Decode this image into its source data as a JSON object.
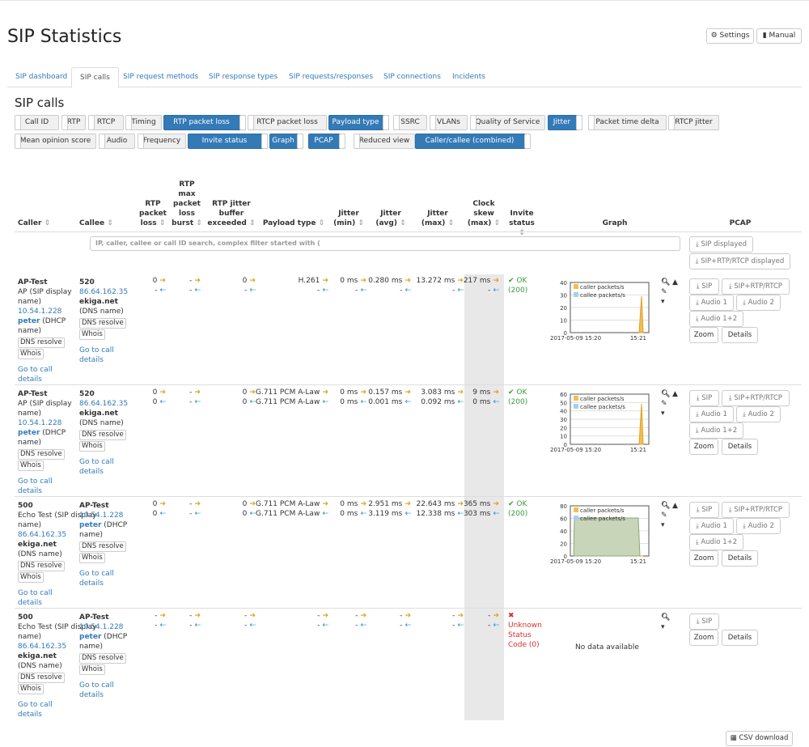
{
  "page": {
    "title": "SIP Statistics",
    "settings_label": "Settings",
    "manual_label": "Manual",
    "section_title": "SIP calls",
    "csv_label": "CSV download"
  },
  "tabs": [
    "SIP dashboard",
    "SIP calls",
    "SIP request methods",
    "SIP response types",
    "SIP requests/responses",
    "SIP connections",
    "Incidents"
  ],
  "toggles_row1": [
    "Call ID",
    "RTP",
    "RTCP",
    "Timing",
    "RTP packet loss",
    "RTCP packet loss",
    "Payload type",
    "SSRC",
    "VLANs",
    "Quality of Service",
    "Jitter",
    "Packet time delta",
    "RTCP jitter"
  ],
  "toggles_row2": [
    "Mean opinion score",
    "Audio",
    "Frequency",
    "Invite status",
    "Graph",
    "PCAP",
    "Reduced view",
    "Caller/callee (combined)"
  ],
  "headers": {
    "caller": "Caller",
    "callee": "Callee",
    "rtp_loss": "RTP packet loss",
    "rtp_burst": "RTP max packet loss burst",
    "rtp_jitter_buf": "RTP jitter buffer exceeded",
    "payload": "Payload type",
    "jmin": "Jitter (min)",
    "javg": "Jitter (avg)",
    "jmax": "Jitter (max)",
    "skew": "Clock skew (max)",
    "invite": "Invite status",
    "graph": "Graph",
    "pcap": "PCAP"
  },
  "filter_placeholder": "IP, caller, callee or call ID search, complex filter started with (",
  "pcap_displayed": {
    "sip": "SIP displayed",
    "all": "SIP+RTP/RTCP displayed"
  },
  "common": {
    "dns_resolve": "DNS resolve",
    "whois": "Whois",
    "go_to_call": "Go to call",
    "details_word": "details",
    "sip_display_name": "(SIP display",
    "name_word": "name)",
    "dhcp_name": "(DHCP",
    "dns_name": "(DNS name)",
    "no_data": "No data available",
    "zoom": "Zoom",
    "details": "Details",
    "sip": "SIP",
    "sip_rtp": "SIP+RTP/RTCP",
    "audio1": "Audio 1",
    "audio2": "Audio 2",
    "audio12": "Audio 1+2",
    "legend_caller": "caller packets/s",
    "legend_callee": "callee packets/s",
    "x_start": "2017-05-09 15:20",
    "x_end": "15:21"
  },
  "rows": [
    {
      "caller_name": "AP-Test",
      "caller_display": "AP",
      "caller_ip": "10.54.1.228",
      "caller_host": "peter",
      "caller_host_kind": "dhcp",
      "callee_name": "520",
      "callee_ip": "86.64.162.35",
      "callee_host": "ekiga.net",
      "loss": [
        "0",
        "-"
      ],
      "burst": [
        "-",
        "-"
      ],
      "jbuf": [
        "0",
        "-"
      ],
      "payload": [
        "H.261",
        "-"
      ],
      "jmin": [
        "0 ms",
        "-"
      ],
      "javg": [
        "0.280 ms",
        "-"
      ],
      "jmax": [
        "13.272 ms",
        "-"
      ],
      "skew": [
        "217 ms",
        "-"
      ],
      "invite": [
        "OK",
        "(200)"
      ],
      "status": "ok",
      "yticks": [
        "40",
        "30",
        "20",
        "10",
        "0"
      ]
    },
    {
      "caller_name": "AP-Test",
      "caller_display": "AP",
      "caller_ip": "10.54.1.228",
      "caller_host": "peter",
      "caller_host_kind": "dhcp",
      "callee_name": "520",
      "callee_ip": "86.64.162.35",
      "callee_host": "ekiga.net",
      "loss": [
        "0",
        "0"
      ],
      "burst": [
        "-",
        "-"
      ],
      "jbuf": [
        "0",
        "0"
      ],
      "payload": [
        "G.711 PCM A-Law",
        "G.711 PCM A-Law"
      ],
      "jmin": [
        "0 ms",
        "0 ms"
      ],
      "javg": [
        "0.157 ms",
        "0.001 ms"
      ],
      "jmax": [
        "3.083 ms",
        "0.092 ms"
      ],
      "skew": [
        "9 ms",
        "0 ms"
      ],
      "invite": [
        "OK",
        "(200)"
      ],
      "status": "ok",
      "yticks": [
        "60",
        "50",
        "40",
        "30",
        "20",
        "10",
        "0"
      ]
    },
    {
      "caller_name": "500",
      "caller_display": "Echo Test",
      "caller_ip": "86.64.162.35",
      "caller_host": "ekiga.net",
      "caller_host_kind": "dns",
      "callee_name": "AP-Test",
      "callee_ip": "10.54.1.228",
      "callee_host": "peter",
      "loss": [
        "0",
        "0"
      ],
      "burst": [
        "-",
        "-"
      ],
      "jbuf": [
        "0",
        "0"
      ],
      "payload": [
        "G.711 PCM A-Law",
        "G.711 PCM A-Law"
      ],
      "jmin": [
        "0 ms",
        "0 ms"
      ],
      "javg": [
        "2.951 ms",
        "3.119 ms"
      ],
      "jmax": [
        "22.643 ms",
        "12.338 ms"
      ],
      "skew": [
        "365 ms",
        "303 ms"
      ],
      "invite": [
        "OK",
        "(200)"
      ],
      "status": "ok",
      "yticks": [
        "80",
        "60",
        "40",
        "20",
        "0"
      ]
    },
    {
      "caller_name": "500",
      "caller_display": "Echo Test",
      "caller_ip": "86.64.162.35",
      "caller_host": "ekiga.net",
      "caller_host_kind": "dns",
      "callee_name": "AP-Test",
      "callee_ip": "10.54.1.228",
      "callee_host": "peter",
      "loss": [
        "-",
        "-"
      ],
      "burst": [
        "-",
        "-"
      ],
      "jbuf": [
        "-",
        "-"
      ],
      "payload": [
        "-",
        "-"
      ],
      "jmin": [
        "-",
        "-"
      ],
      "javg": [
        "-",
        "-"
      ],
      "jmax": [
        "-",
        "-"
      ],
      "skew": [
        "-",
        "-"
      ],
      "invite": [
        "Unknown",
        "Status",
        "Code (0)"
      ],
      "status": "err"
    }
  ],
  "colors": {
    "accent": "#337ab7",
    "caller_series": "#f0c050",
    "callee_series": "#a9cfe8",
    "ok": "#3c9a3c",
    "error": "#d9302c"
  }
}
